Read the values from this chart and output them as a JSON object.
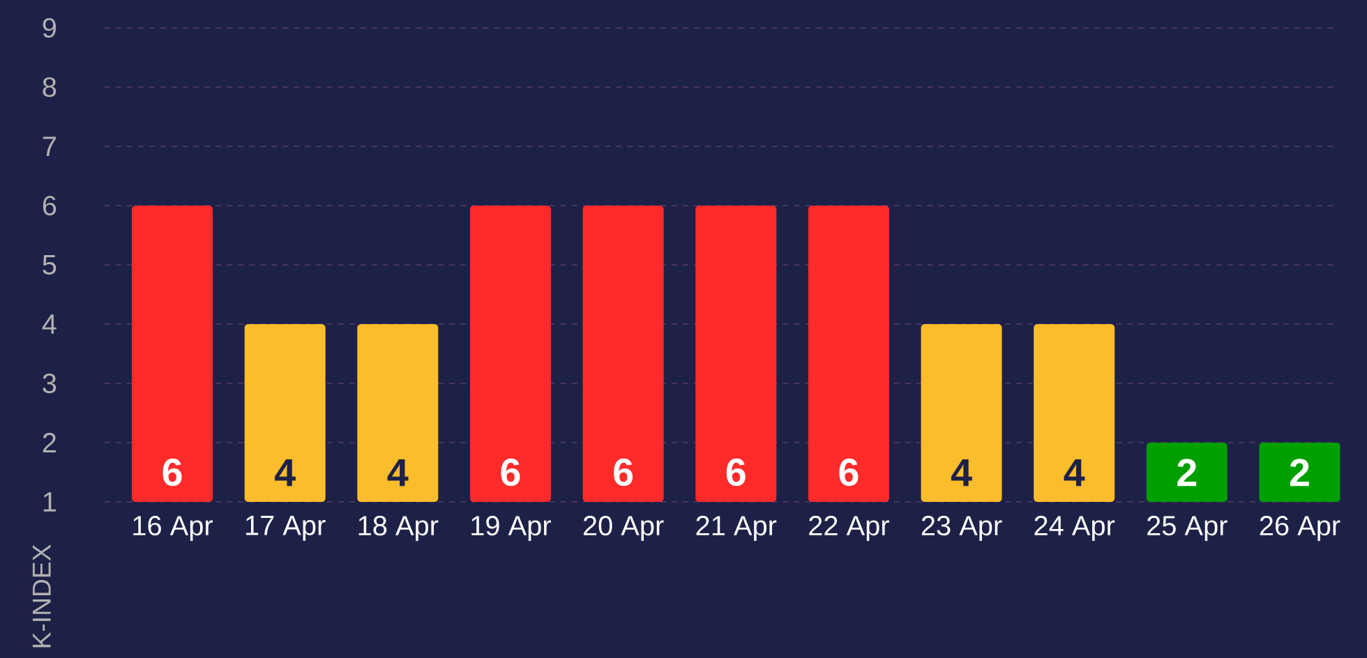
{
  "chart_data": {
    "type": "bar",
    "ylabel": "K-INDEX",
    "categories": [
      "16 Apr",
      "17 Apr",
      "18 Apr",
      "19 Apr",
      "20 Apr",
      "21 Apr",
      "22 Apr",
      "23 Apr",
      "24 Apr",
      "25 Apr",
      "26 Apr"
    ],
    "values": [
      6,
      4,
      4,
      6,
      6,
      6,
      6,
      4,
      4,
      2,
      2
    ],
    "colors": [
      "#ff2a2a",
      "#fbbd2b",
      "#fbbd2b",
      "#ff2a2a",
      "#ff2a2a",
      "#ff2a2a",
      "#ff2a2a",
      "#fbbd2b",
      "#fbbd2b",
      "#009f00",
      "#009f00"
    ],
    "ylim": [
      1,
      9
    ],
    "yticks": [
      1,
      2,
      3,
      4,
      5,
      6,
      7,
      8,
      9
    ],
    "grid": "y",
    "data_labels": true
  }
}
